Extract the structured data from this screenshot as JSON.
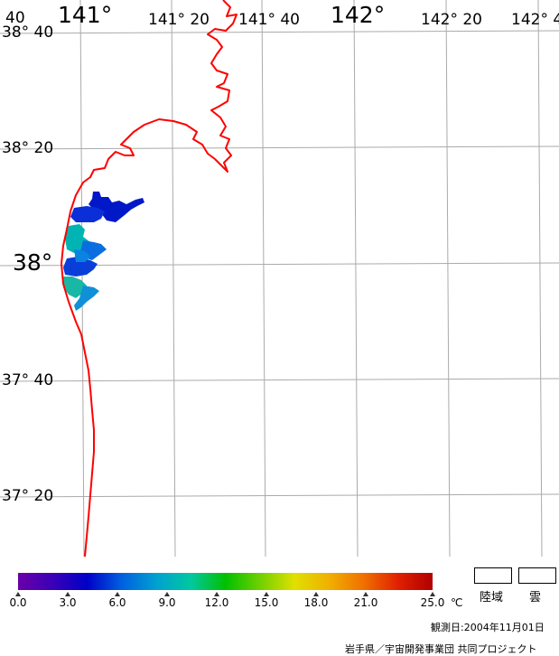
{
  "map": {
    "lon_labels_major": [
      "141°",
      "142°"
    ],
    "lon_labels_minor": [
      "141° 20",
      "141° 40",
      "142° 20",
      "142° 4"
    ],
    "lat_labels_major": [
      "38°"
    ],
    "lat_labels_minor": [
      "38° 40",
      "38° 20",
      "37° 40",
      "37° 20"
    ],
    "corner_fragment": "40",
    "coastline_color": "#ff0000",
    "grid_color": "#aaaaaa"
  },
  "colorbar": {
    "ticks": [
      "0.0",
      "3.0",
      "6.0",
      "9.0",
      "12.0",
      "15.0",
      "18.0",
      "21.0",
      "25.0"
    ],
    "unit": "℃",
    "colors": [
      "#6a00a8",
      "#3a00b8",
      "#0000c8",
      "#0060e0",
      "#00a0d0",
      "#00c8a0",
      "#00c000",
      "#70d000",
      "#e0e000",
      "#f0b000",
      "#f07000",
      "#e02000",
      "#b00000"
    ]
  },
  "legend": {
    "land_label": "陸域",
    "cloud_label": "雲"
  },
  "footer": {
    "observation_date": "観測日:2004年11月01日",
    "credit": "岩手県／宇宙開発事業団 共同プロジェクト"
  }
}
